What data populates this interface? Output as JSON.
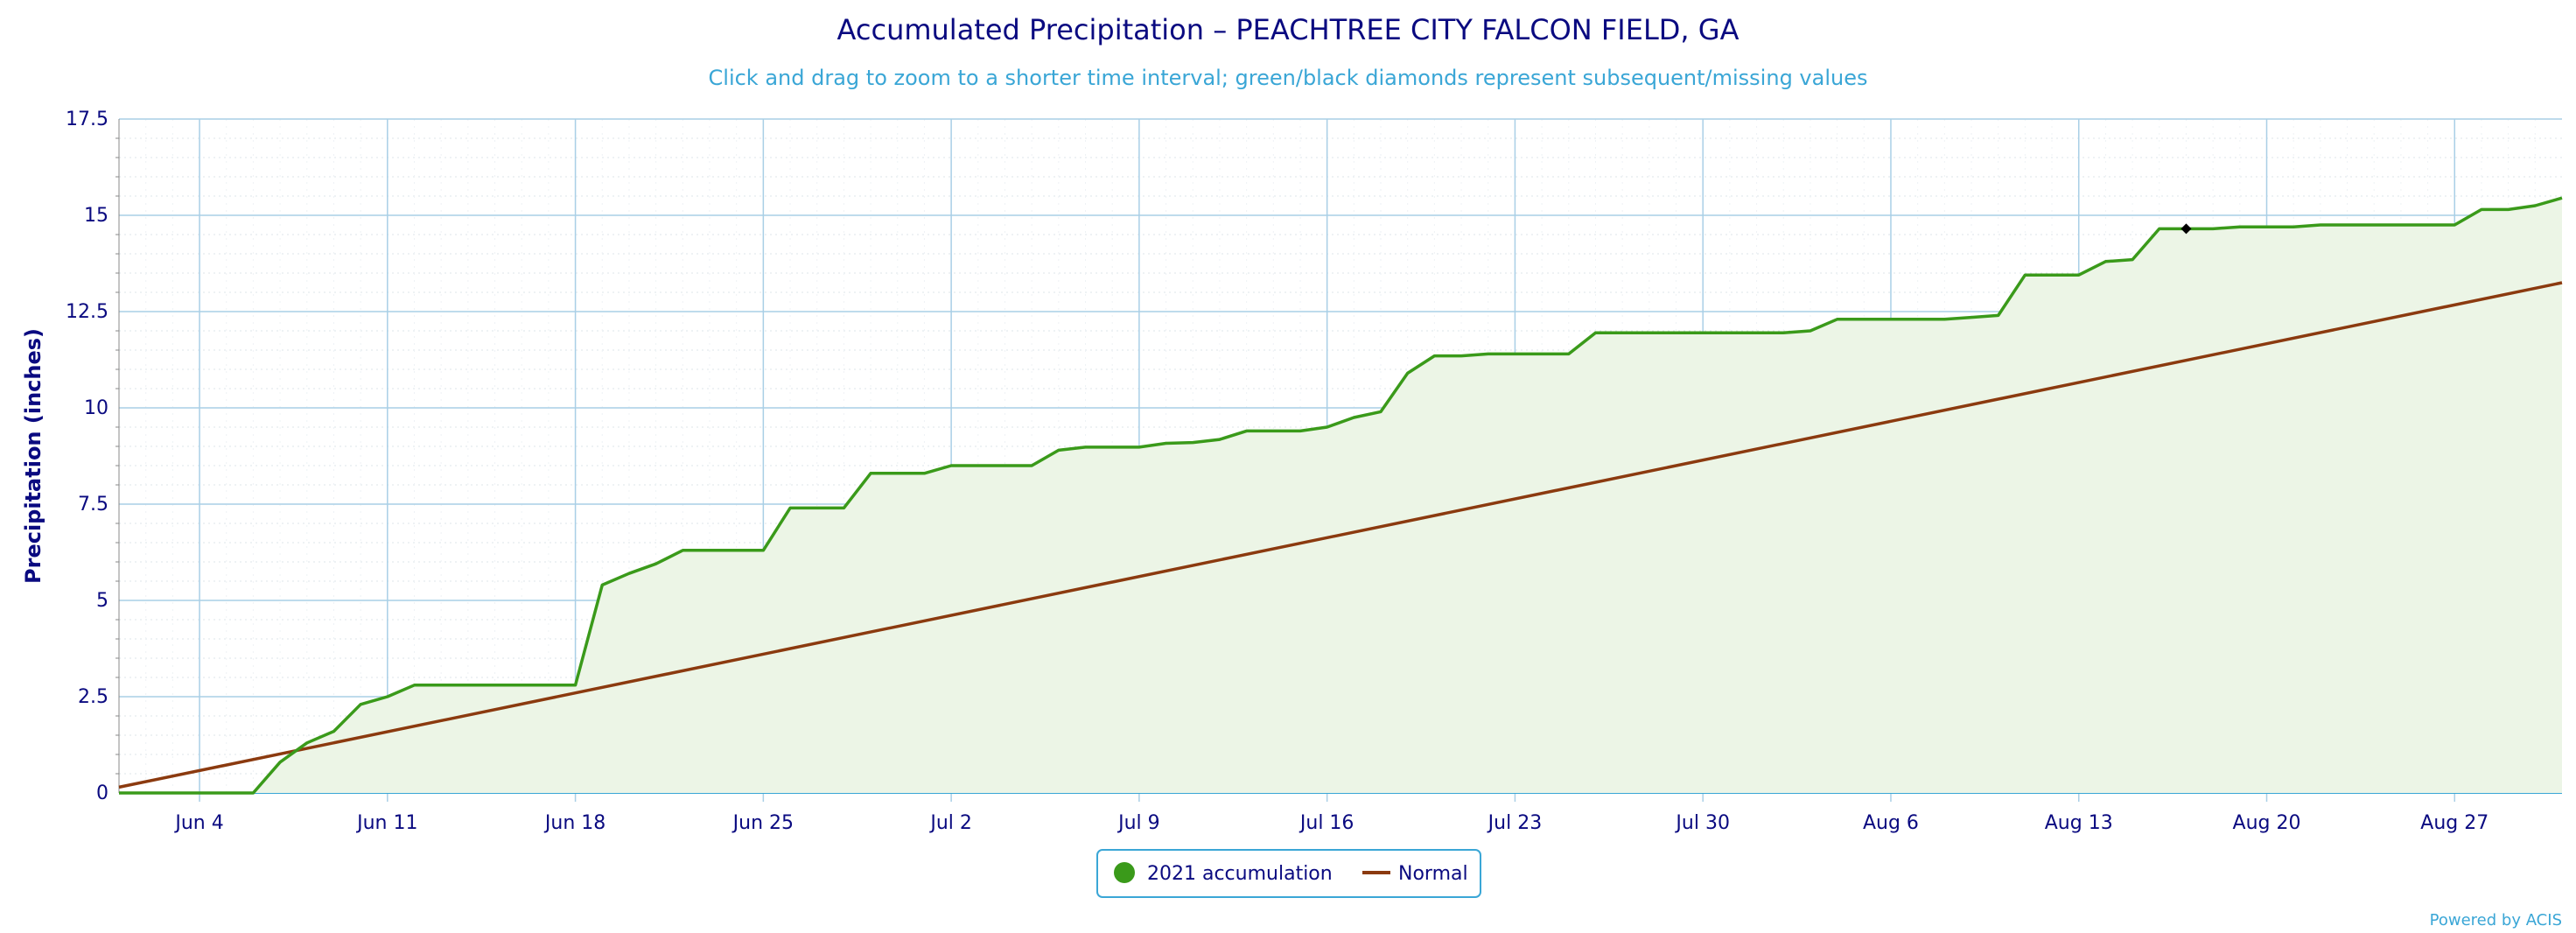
{
  "chart_data": {
    "type": "line",
    "title": "Accumulated Precipitation – PEACHTREE CITY FALCON FIELD, GA",
    "subtitle": "Click and drag to zoom to a shorter time interval; green/black diamonds represent subsequent/missing values",
    "xlabel": "",
    "ylabel": "Precipitation (inches)",
    "ylim": [
      0,
      17.5
    ],
    "yticks": [
      0,
      2.5,
      5,
      7.5,
      10,
      12.5,
      15,
      17.5
    ],
    "ytick_labels": [
      "0",
      "2.5",
      "5",
      "7.5",
      "10",
      "12.5",
      "15",
      "17.5"
    ],
    "xlim": [
      "2021-06-01",
      "2021-08-31"
    ],
    "xticks": [
      "2021-06-04",
      "2021-06-11",
      "2021-06-18",
      "2021-06-25",
      "2021-07-02",
      "2021-07-09",
      "2021-07-16",
      "2021-07-23",
      "2021-07-30",
      "2021-08-06",
      "2021-08-13",
      "2021-08-20",
      "2021-08-27"
    ],
    "xtick_labels": [
      "Jun 4",
      "Jun 11",
      "Jun 18",
      "Jun 25",
      "Jul 2",
      "Jul 9",
      "Jul 16",
      "Jul 23",
      "Jul 30",
      "Aug 6",
      "Aug 13",
      "Aug 20",
      "Aug 27"
    ],
    "grid": true,
    "legend_position": "bottom-center",
    "series": [
      {
        "name": "2021 accumulation",
        "color": "#3a9a1a",
        "fill": "#ecf5e6",
        "x": [
          "2021-06-01",
          "2021-06-06",
          "2021-06-07",
          "2021-06-08",
          "2021-06-09",
          "2021-06-10",
          "2021-06-11",
          "2021-06-12",
          "2021-06-18",
          "2021-06-19",
          "2021-06-20",
          "2021-06-21",
          "2021-06-22",
          "2021-06-25",
          "2021-06-26",
          "2021-06-28",
          "2021-06-29",
          "2021-07-01",
          "2021-07-02",
          "2021-07-05",
          "2021-07-06",
          "2021-07-07",
          "2021-07-09",
          "2021-07-10",
          "2021-07-11",
          "2021-07-12",
          "2021-07-13",
          "2021-07-15",
          "2021-07-16",
          "2021-07-17",
          "2021-07-18",
          "2021-07-19",
          "2021-07-20",
          "2021-07-21",
          "2021-07-22",
          "2021-07-25",
          "2021-07-26",
          "2021-08-02",
          "2021-08-03",
          "2021-08-04",
          "2021-08-08",
          "2021-08-09",
          "2021-08-10",
          "2021-08-11",
          "2021-08-13",
          "2021-08-14",
          "2021-08-15",
          "2021-08-16",
          "2021-08-18",
          "2021-08-19",
          "2021-08-21",
          "2021-08-22",
          "2021-08-27",
          "2021-08-28",
          "2021-08-29",
          "2021-08-30",
          "2021-08-31"
        ],
        "y": [
          0,
          0,
          0.8,
          1.3,
          1.6,
          2.3,
          2.5,
          2.8,
          2.8,
          5.4,
          5.7,
          5.95,
          6.3,
          6.3,
          7.4,
          7.4,
          8.3,
          8.3,
          8.5,
          8.5,
          8.9,
          8.98,
          8.98,
          9.08,
          9.1,
          9.18,
          9.4,
          9.4,
          9.5,
          9.75,
          9.9,
          10.9,
          11.35,
          11.35,
          11.4,
          11.4,
          11.95,
          11.95,
          12.0,
          12.3,
          12.3,
          12.35,
          12.4,
          13.45,
          13.45,
          13.8,
          13.85,
          14.65,
          14.65,
          14.7,
          14.7,
          14.75,
          14.75,
          15.15,
          15.15,
          15.25,
          15.45
        ]
      },
      {
        "name": "Normal",
        "color": "#8b3a0f",
        "x": [
          "2021-06-01",
          "2021-08-31"
        ],
        "y": [
          0.15,
          13.25
        ]
      }
    ],
    "missing_markers": [
      {
        "x": "2021-08-17",
        "y": 14.65,
        "color": "#000000"
      }
    ],
    "credits": "Powered by ACIS"
  }
}
